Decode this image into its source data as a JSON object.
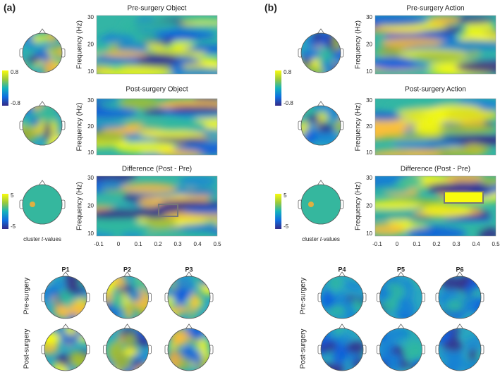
{
  "panels": [
    {
      "label": "(a)",
      "heatmaps": [
        {
          "title": "Pre-surgery Object"
        },
        {
          "title": "Post-surgery Object"
        },
        {
          "title": "Difference (Post - Pre)"
        }
      ],
      "colorbars": [
        {
          "max": "0.8",
          "min": "-0.8"
        },
        {
          "max": "5",
          "min": "-5"
        }
      ],
      "participants": [
        "P1",
        "P2",
        "P3"
      ]
    },
    {
      "label": "(b)",
      "heatmaps": [
        {
          "title": "Pre-surgery Action"
        },
        {
          "title": "Post-surgery Action"
        },
        {
          "title": "Difference (Post - Pre)"
        }
      ],
      "colorbars": [
        {
          "max": "0.8",
          "min": "-0.8"
        },
        {
          "max": "5",
          "min": "-5"
        }
      ],
      "participants": [
        "P4",
        "P5",
        "P6"
      ]
    }
  ],
  "ylabel": "Frequency (Hz)",
  "yticks": [
    "30",
    "20",
    "10"
  ],
  "xticks": [
    "-0.1",
    "0",
    "0.1",
    "0.2",
    "0.3",
    "0.4",
    "0.5"
  ],
  "cluster_label": [
    "cluster ",
    "t",
    "-values"
  ],
  "rows": [
    "Pre-surgery",
    "Post-surgery"
  ]
}
